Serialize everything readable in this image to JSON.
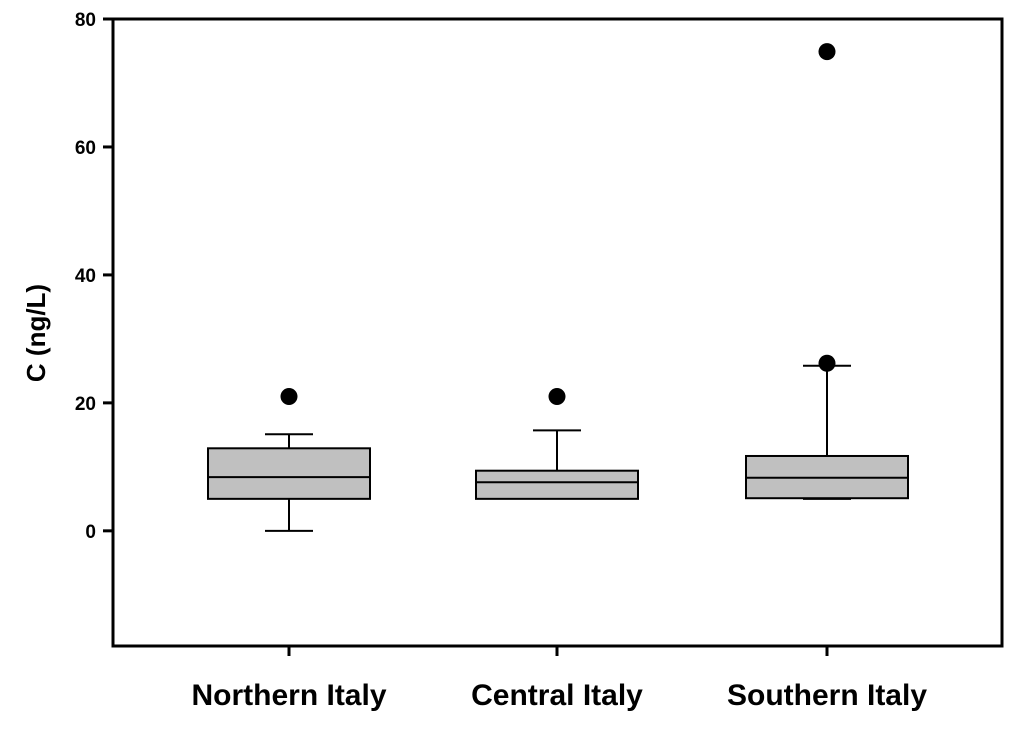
{
  "chart_data": {
    "type": "box",
    "title": "",
    "xlabel": "",
    "ylabel": "C (ng/L)",
    "ylim": [
      -18,
      80
    ],
    "yticks": [
      0,
      20,
      40,
      60,
      80
    ],
    "grid": false,
    "box_color": "#c0c0c0",
    "categories": [
      "Northern Italy",
      "Central Italy",
      "Southern Italy"
    ],
    "boxes": [
      {
        "whisker_low": 0,
        "q1": 5.0,
        "median": 8.4,
        "q3": 12.9,
        "whisker_high": 15.1,
        "outliers": [
          21.0
        ]
      },
      {
        "whisker_low": 5.0,
        "q1": 5.0,
        "median": 7.6,
        "q3": 9.4,
        "whisker_high": 15.7,
        "outliers": [
          21.0
        ]
      },
      {
        "whisker_low": 5.0,
        "q1": 5.1,
        "median": 8.3,
        "q3": 11.7,
        "whisker_high": 25.8,
        "outliers": [
          26.2,
          74.9
        ]
      }
    ]
  }
}
